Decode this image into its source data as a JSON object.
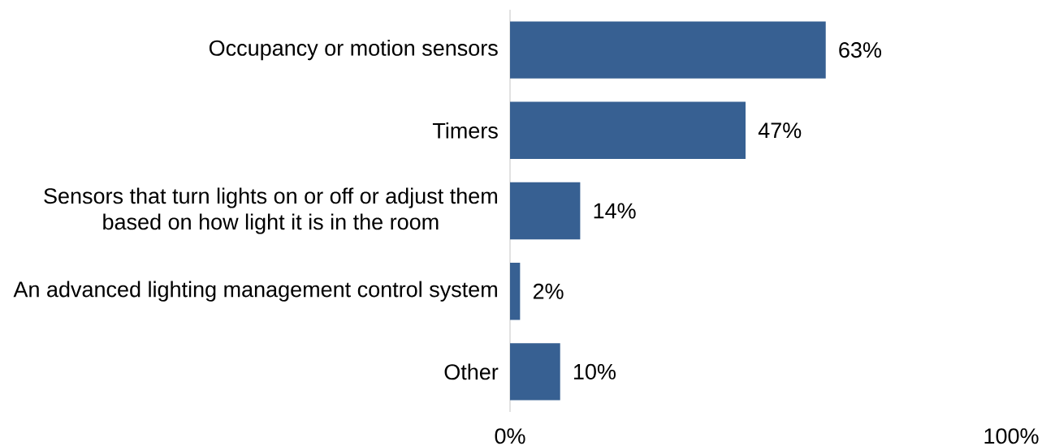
{
  "chart_data": {
    "type": "bar",
    "orientation": "horizontal",
    "categories": [
      "Occupancy or motion sensors",
      "Timers",
      "Sensors that turn lights on or off or adjust them based on how light it is in the room",
      "An advanced lighting management control system",
      "Other"
    ],
    "values": [
      63,
      47,
      14,
      2,
      10
    ],
    "value_labels": [
      "63%",
      "47%",
      "14%",
      "2%",
      "10%"
    ],
    "color": "#376092",
    "xlim": [
      0,
      100
    ],
    "xticks": [
      {
        "value": 0,
        "label": "0%"
      },
      {
        "value": 100,
        "label": "100%"
      }
    ]
  }
}
